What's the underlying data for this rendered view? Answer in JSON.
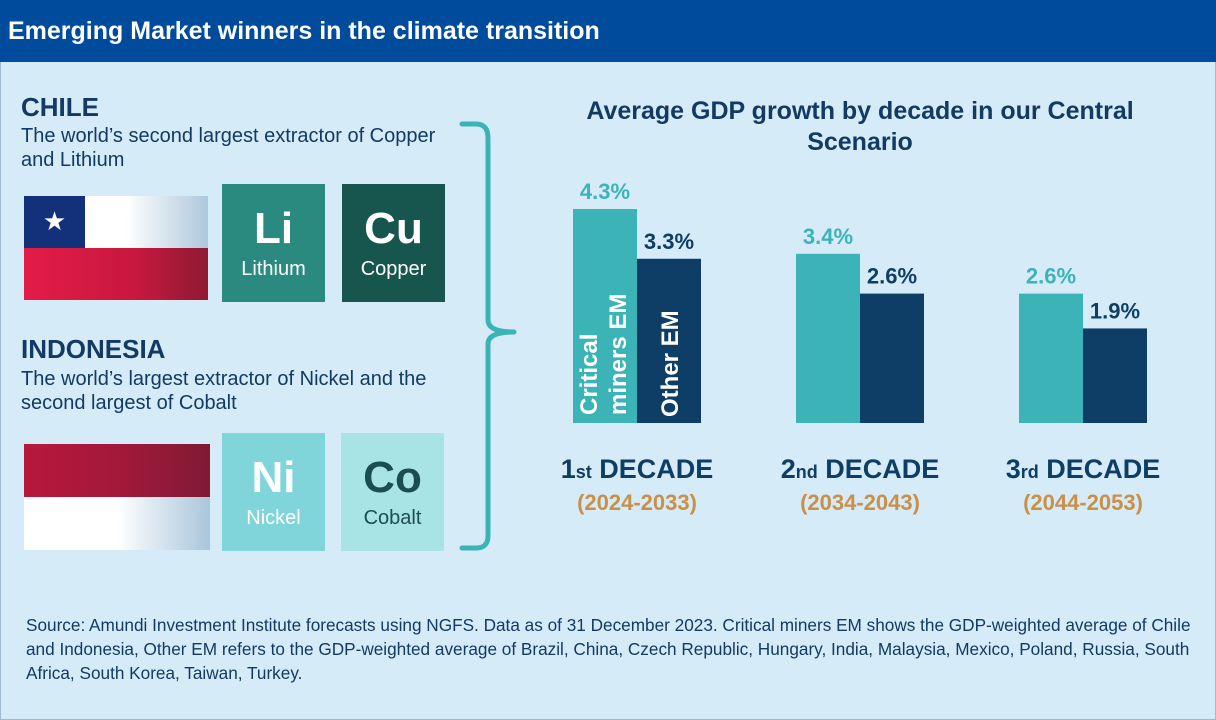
{
  "header": {
    "title": "Emerging Market winners in the climate transition"
  },
  "chile": {
    "name": "CHILE",
    "description": "The world’s second largest extractor of Copper and Lithium",
    "elements": [
      {
        "symbol": "Li",
        "name": "Lithium",
        "bg": "#2b8a7f",
        "fg": "#ffffff"
      },
      {
        "symbol": "Cu",
        "name": "Copper",
        "bg": "#17564f",
        "fg": "#ffffff"
      }
    ]
  },
  "indonesia": {
    "name": "INDONESIA",
    "description": "The world’s largest extractor of Nickel and the second largest of Cobalt",
    "elements": [
      {
        "symbol": "Ni",
        "name": "Nickel",
        "bg": "#7fd5da",
        "fg": "#ffffff"
      },
      {
        "symbol": "Co",
        "name": "Cobalt",
        "bg": "#a8e3e5",
        "fg": "#1b4e4f"
      }
    ]
  },
  "colors": {
    "critical": "#3bb3b7",
    "other": "#0e3e66",
    "period": "#c8904a",
    "brace": "#3bb3b7"
  },
  "chart_data": {
    "type": "bar",
    "title": "Average GDP growth by decade in our Central Scenario",
    "ylim": [
      0,
      4.3
    ],
    "value_suffix": "%",
    "categories": [
      {
        "ord": "1",
        "suffix": "st",
        "word": "DECADE",
        "period": "(2024-2033)"
      },
      {
        "ord": "2",
        "suffix": "nd",
        "word": "DECADE",
        "period": "(2034-2043)"
      },
      {
        "ord": "3",
        "suffix": "rd",
        "word": "DECADE",
        "period": "(2044-2053)"
      }
    ],
    "series": [
      {
        "name": "Critical miners EM",
        "values": [
          4.3,
          3.4,
          2.6
        ]
      },
      {
        "name": "Other EM",
        "values": [
          3.3,
          2.6,
          1.9
        ]
      }
    ],
    "in_bar_labels": {
      "critical": [
        "Critical",
        "miners EM"
      ],
      "other": [
        "Other EM"
      ]
    }
  },
  "source": "Source: Amundi Investment Institute forecasts using NGFS. Data as of 31 December 2023. Critical miners EM shows the GDP-weighted average of Chile and Indonesia, Other EM refers to the GDP-weighted average of Brazil, China, Czech Republic, Hungary, India, Malaysia, Mexico, Poland, Russia, South Africa, South Korea, Taiwan, Turkey."
}
